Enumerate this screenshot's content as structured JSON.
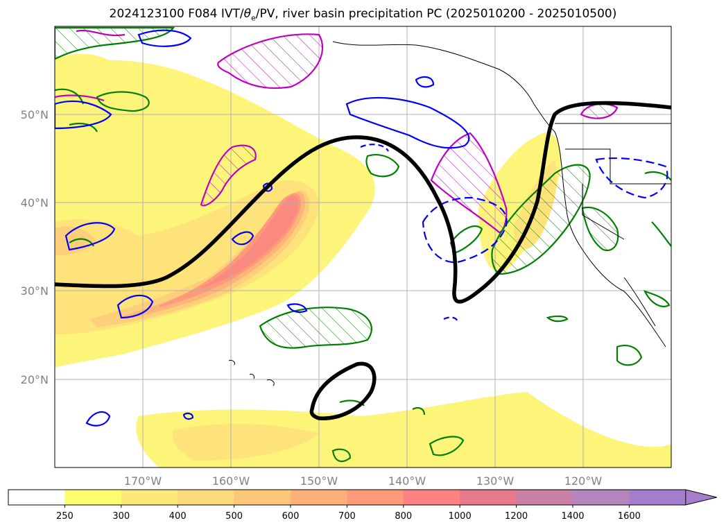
{
  "title": {
    "prefix": "2024123100 F084 IVT/",
    "theta": "θ",
    "theta_sub": "e",
    "suffix": "/PV, river basin precipitation PC (2025010200 - 2025010500)"
  },
  "map": {
    "projection": "latitude-longitude",
    "lon_range": [
      -180,
      -110
    ],
    "lat_range": [
      10,
      60
    ],
    "lon_ticks": [
      {
        "value": -170,
        "label": "170°W"
      },
      {
        "value": -160,
        "label": "160°W"
      },
      {
        "value": -150,
        "label": "150°W"
      },
      {
        "value": -140,
        "label": "140°W"
      },
      {
        "value": -130,
        "label": "130°W"
      },
      {
        "value": -120,
        "label": "120°W"
      }
    ],
    "lat_ticks": [
      {
        "value": 50,
        "label": "50°N"
      },
      {
        "value": 40,
        "label": "40°N"
      },
      {
        "value": 30,
        "label": "30°N"
      },
      {
        "value": 20,
        "label": "20°N"
      }
    ],
    "gridlines": true,
    "tick_color": "#808080"
  },
  "colorbar": {
    "label_values": [
      "250",
      "300",
      "400",
      "500",
      "600",
      "700",
      "800",
      "1000",
      "1200",
      "1400",
      "1600"
    ],
    "colors": [
      "#ffffff",
      "#fdfd70",
      "#fde97a",
      "#fdd97a",
      "#fdc77a",
      "#fdb07a",
      "#fd9a7a",
      "#fd8282",
      "#e77a8a",
      "#c781a6",
      "#b485bd",
      "#a47ecb"
    ],
    "extend": "max"
  },
  "legend_colors": {
    "black_contour": "#000000",
    "blue_contour": "#0000ff",
    "green_contour": "#008000",
    "magenta_contour": "#c000c0"
  }
}
